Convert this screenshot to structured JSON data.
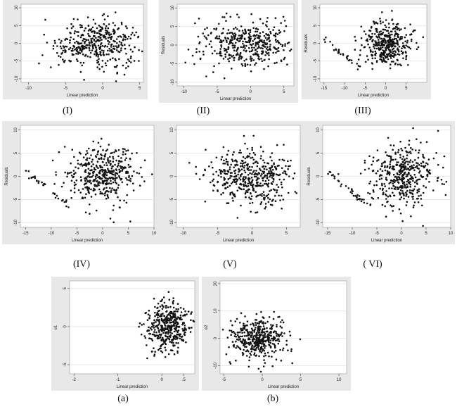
{
  "captions": [
    "(I)",
    "(II)",
    "(III)",
    "(IV)",
    "(V)",
    "( VI)",
    "(a)",
    "(b)"
  ],
  "chart_data": [
    {
      "type": "scatter",
      "caption": "(I)",
      "xlabel": "Linear prediction",
      "ylabel": "",
      "xlim": [
        -11,
        5.5
      ],
      "ylim": [
        -11,
        11
      ],
      "xticks": [
        -10,
        -5,
        0,
        5
      ],
      "yticks": [
        -10,
        -5,
        0,
        5,
        10
      ],
      "grid": true,
      "n_points": 420,
      "seed": 11,
      "x_center": -0.5,
      "x_spread": 3.0,
      "y_spread": 4.0,
      "left_tail": false
    },
    {
      "type": "scatter",
      "caption": "(II)",
      "xlabel": "Linear prediction",
      "ylabel": "Residuals",
      "xlim": [
        -11,
        6.5
      ],
      "ylim": [
        -11,
        11
      ],
      "xticks": [
        -10,
        -5,
        0,
        5
      ],
      "yticks": [
        -10,
        -5,
        0,
        5,
        10
      ],
      "grid": true,
      "n_points": 420,
      "seed": 23,
      "x_center": -0.5,
      "x_spread": 3.2,
      "y_spread": 4.0,
      "left_tail": false
    },
    {
      "type": "scatter",
      "caption": "(III)",
      "xlabel": "Linear prediction",
      "ylabel": "Residuals",
      "xlim": [
        -16,
        10
      ],
      "ylim": [
        -11,
        11
      ],
      "xticks": [
        -15,
        -10,
        -5,
        0,
        5
      ],
      "yticks": [
        -10,
        -5,
        0,
        5,
        10
      ],
      "grid": true,
      "n_points": 420,
      "seed": 37,
      "x_center": 0,
      "x_spread": 3.0,
      "y_spread": 4.0,
      "left_tail": true
    },
    {
      "type": "scatter",
      "caption": "(IV)",
      "xlabel": "Linear prediction",
      "ylabel": "Residuals",
      "xlim": [
        -16,
        10
      ],
      "ylim": [
        -11,
        11
      ],
      "xticks": [
        -15,
        -10,
        -5,
        0,
        5,
        10
      ],
      "yticks": [
        -10,
        -5,
        0,
        5,
        10
      ],
      "grid": true,
      "n_points": 460,
      "seed": 41,
      "x_center": 0,
      "x_spread": 3.2,
      "y_spread": 4.0,
      "left_tail": true
    },
    {
      "type": "scatter",
      "caption": "(V)",
      "xlabel": "Linear prediction",
      "ylabel": "",
      "xlim": [
        -11,
        7
      ],
      "ylim": [
        -11,
        11
      ],
      "xticks": [
        -10,
        -5,
        0,
        5
      ],
      "yticks": [
        -10,
        -5,
        0,
        5,
        10
      ],
      "grid": true,
      "n_points": 460,
      "seed": 53,
      "x_center": 0,
      "x_spread": 3.2,
      "y_spread": 4.0,
      "left_tail": false
    },
    {
      "type": "scatter",
      "caption": "( VI)",
      "xlabel": "Linear prediction",
      "ylabel": "Residuals",
      "xlim": [
        -16,
        10
      ],
      "ylim": [
        -11,
        11
      ],
      "xticks": [
        -15,
        -10,
        -5,
        0,
        5,
        10
      ],
      "yticks": [
        -10,
        -5,
        0,
        5,
        10
      ],
      "grid": true,
      "n_points": 460,
      "seed": 67,
      "x_center": 0,
      "x_spread": 3.2,
      "y_spread": 4.0,
      "left_tail": true
    },
    {
      "type": "scatter",
      "caption": "(a)",
      "xlabel": "Linear prediction",
      "ylabel": "e1",
      "xlim": [
        -2.1,
        0.75
      ],
      "ylim": [
        -6.2,
        6
      ],
      "xticks": [
        -2,
        -1,
        0,
        0.5
      ],
      "xticklabels": [
        "-2",
        "-1",
        "0",
        ".5"
      ],
      "yticks": [
        -5,
        0,
        5
      ],
      "grid": true,
      "n_points": 420,
      "seed": 79,
      "x_center": 0.15,
      "x_spread": 0.25,
      "y_spread": 2.0,
      "left_tail": false
    },
    {
      "type": "scatter",
      "caption": "(b)",
      "xlabel": "Linear prediction",
      "ylabel": "e2",
      "xlim": [
        -5.5,
        11
      ],
      "ylim": [
        -13,
        21
      ],
      "xticks": [
        -5,
        0,
        5,
        10
      ],
      "yticks": [
        -10,
        0,
        10,
        20
      ],
      "grid": true,
      "n_points": 420,
      "seed": 97,
      "x_center": -0.5,
      "x_spread": 1.8,
      "y_spread": 5.0,
      "left_tail": false
    }
  ]
}
